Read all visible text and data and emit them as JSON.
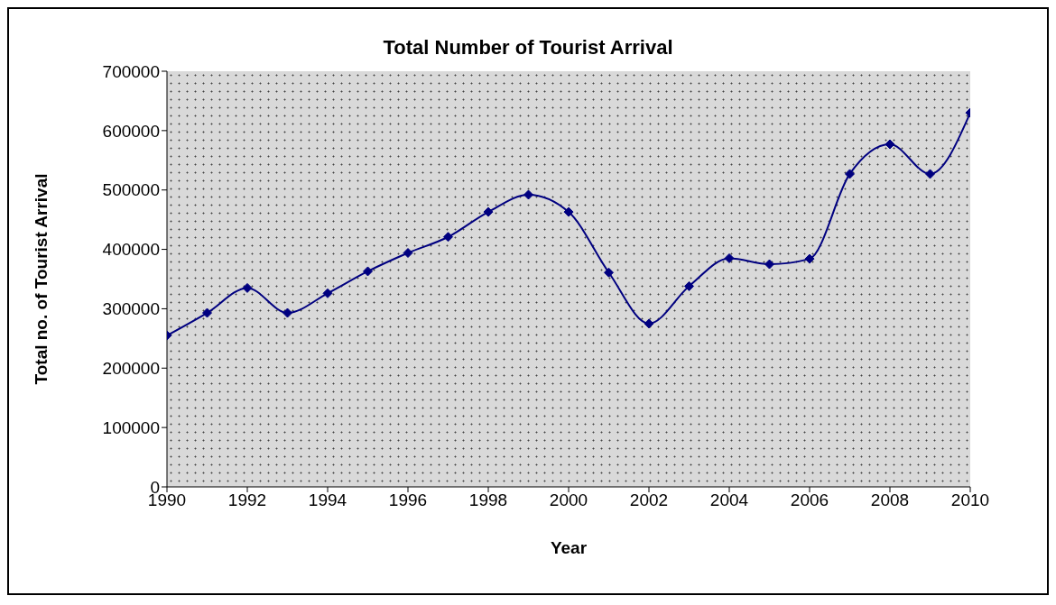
{
  "chart_data": {
    "type": "line",
    "title": "Total Number of Tourist Arrival",
    "xlabel": "Year",
    "ylabel": "Total no. of Tourist Arrival",
    "x": [
      1990,
      1991,
      1992,
      1993,
      1994,
      1995,
      1996,
      1997,
      1998,
      1999,
      2000,
      2001,
      2002,
      2003,
      2004,
      2005,
      2006,
      2007,
      2008,
      2009,
      2010
    ],
    "series": [
      {
        "color": "#000080",
        "values": [
          255000,
          293000,
          335000,
          293000,
          326000,
          363000,
          394000,
          421000,
          463000,
          492000,
          463000,
          361000,
          275000,
          338000,
          385000,
          375000,
          384000,
          527000,
          577000,
          527000,
          630000
        ]
      }
    ],
    "xlim": [
      1990,
      2010
    ],
    "xticks": [
      1990,
      1992,
      1994,
      1996,
      1998,
      2000,
      2002,
      2004,
      2006,
      2008,
      2010
    ],
    "ylim": [
      0,
      700000
    ],
    "yticks": [
      0,
      100000,
      200000,
      300000,
      400000,
      500000,
      600000,
      700000
    ],
    "marker": "diamond",
    "line_style": "solid",
    "grid": false,
    "legend": false
  }
}
